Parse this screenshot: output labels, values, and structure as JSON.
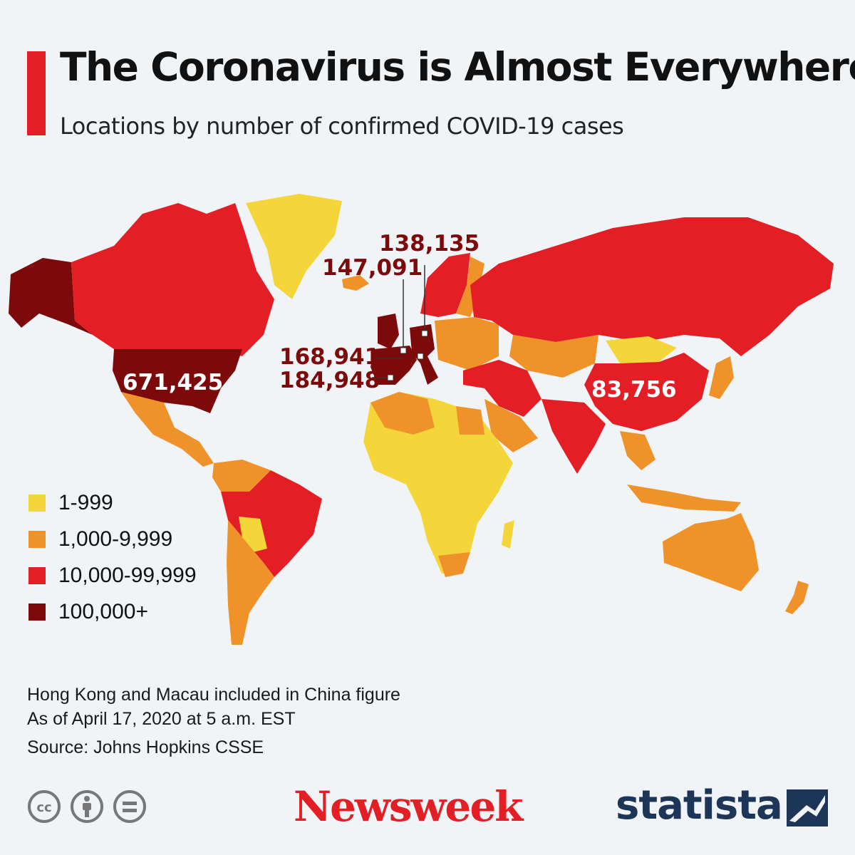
{
  "header": {
    "title": "The Coronavirus is Almost Everywhere",
    "subtitle": "Locations by number of confirmed COVID-19 cases"
  },
  "legend": [
    {
      "label": "1-999",
      "color": "#f5d63a"
    },
    {
      "label": "1,000-9,999",
      "color": "#f0922a"
    },
    {
      "label": "10,000-99,999",
      "color": "#e31e24"
    },
    {
      "label": "100,000+",
      "color": "#7d0a0a"
    }
  ],
  "callouts": {
    "usa": "671,425",
    "china": "83,756",
    "germany": "138,135",
    "france": "147,091",
    "italy": "168,941",
    "spain": "184,948"
  },
  "notes": {
    "line1": "Hong Kong and Macau included in China figure",
    "line2": "As of April 17, 2020 at 5 a.m. EST",
    "source": "Source: Johns Hopkins CSSE"
  },
  "branding": {
    "newsweek": "Newsweek",
    "statista": "statista"
  },
  "icons": [
    "creative-commons-icon",
    "attribution-icon",
    "no-derivatives-icon",
    "statista-logo-icon"
  ]
}
